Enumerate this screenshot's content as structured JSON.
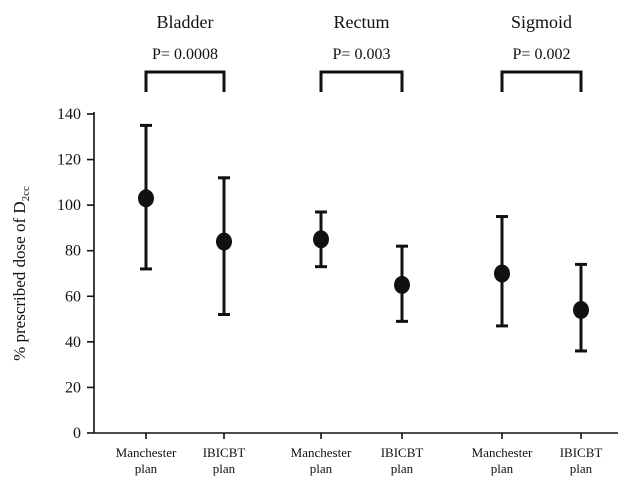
{
  "chart_data": {
    "type": "scatter",
    "ylabel": "% prescribed dose of D",
    "ylabel_subscript": "2cc",
    "ylim": [
      0,
      140
    ],
    "yticks": [
      0,
      20,
      40,
      60,
      80,
      100,
      120,
      140
    ],
    "grid": false,
    "categories": [
      [
        "Manchester",
        "plan"
      ],
      [
        "IBICBT",
        "plan"
      ],
      [
        "Manchester",
        "plan"
      ],
      [
        "IBICBT",
        "plan"
      ],
      [
        "Manchester",
        "plan"
      ],
      [
        "IBICBT",
        "plan"
      ]
    ],
    "groups": [
      {
        "name": "Bladder",
        "p_value": "P= 0.0008",
        "category_indices": [
          0,
          1
        ]
      },
      {
        "name": "Rectum",
        "p_value": "P= 0.003",
        "category_indices": [
          2,
          3
        ]
      },
      {
        "name": "Sigmoid",
        "p_value": "P= 0.002",
        "category_indices": [
          4,
          5
        ]
      }
    ],
    "points": [
      {
        "mean": 103,
        "low": 72,
        "high": 135
      },
      {
        "mean": 84,
        "low": 52,
        "high": 112
      },
      {
        "mean": 85,
        "low": 73,
        "high": 97
      },
      {
        "mean": 65,
        "low": 49,
        "high": 82
      },
      {
        "mean": 70,
        "low": 47,
        "high": 95
      },
      {
        "mean": 54,
        "low": 36,
        "high": 74
      }
    ],
    "colors": {
      "marker": "#111111",
      "axis": "#111111"
    }
  }
}
